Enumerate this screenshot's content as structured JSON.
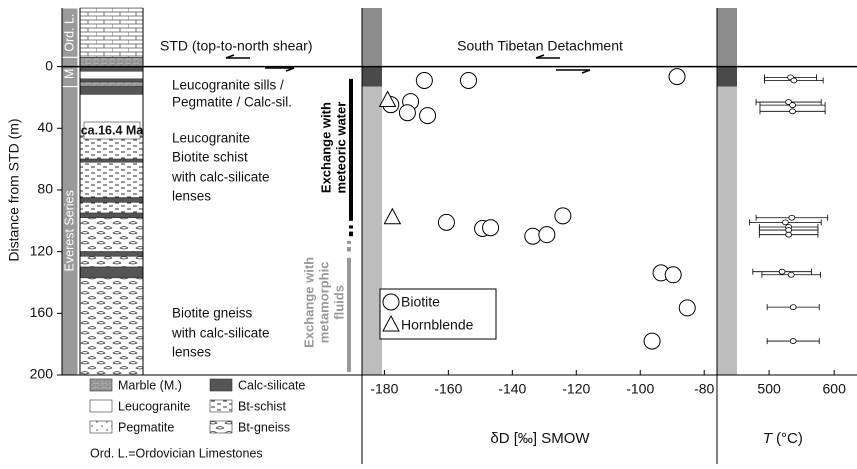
{
  "chart_data": [
    {
      "type": "scatter",
      "ylabel": "Distance from STD (m)",
      "ylim": [
        -38,
        200
      ],
      "yticks": [
        0,
        40,
        80,
        120,
        160,
        200
      ],
      "xlabel": "δD [‰] SMOW",
      "xlim": [
        -187,
        -76
      ],
      "xticks": [
        -180,
        -160,
        -140,
        -120,
        -100,
        -80
      ],
      "annotation": "South Tibetan Detachment",
      "legend_position": "lower left",
      "series": [
        {
          "name": "Biotite",
          "marker": "circle",
          "x": [
            -167.5,
            -153.7,
            -88.5,
            -178,
            -171.8,
            -172.8,
            -166.5,
            -160.6,
            -149.3,
            -146.8,
            -133.6,
            -129.2,
            -124.2,
            -93.5,
            -89.7,
            -85.3,
            -96.3
          ],
          "y": [
            9,
            9,
            6.5,
            24.7,
            22.7,
            29.9,
            31.8,
            101,
            105,
            104.5,
            110,
            109,
            96.8,
            133.8,
            135,
            156.5,
            178
          ]
        },
        {
          "name": "Hornblende",
          "marker": "triangle",
          "x": [
            -179,
            -177.5
          ],
          "y": [
            22,
            98
          ]
        }
      ]
    },
    {
      "type": "errorbar",
      "xlabel_symbol": "T",
      "xlabel_unit": "(°C)",
      "xlim": [
        420,
        635
      ],
      "xticks": [
        500,
        600
      ],
      "series": [
        {
          "depths": [
            7,
            9,
            23,
            25,
            29,
            98,
            101,
            104,
            106,
            109,
            133,
            135,
            156,
            178
          ],
          "values": [
            533,
            538,
            530,
            536,
            536,
            535,
            525,
            530,
            530,
            530,
            520,
            534,
            537,
            537
          ],
          "errors": [
            40,
            45,
            50,
            50,
            50,
            55,
            55,
            45,
            45,
            45,
            45,
            45,
            40,
            40
          ]
        }
      ]
    }
  ],
  "column": {
    "units": [
      {
        "label": "Ord. L.",
        "top": -38,
        "bottom": -6
      },
      {
        "label": "M.",
        "top": -6,
        "bottom": 13
      },
      {
        "label": "Everest Series",
        "top": 13,
        "bottom": 200
      }
    ],
    "layers": [
      {
        "lith": "Ord. L.",
        "top": -38,
        "bottom": -6
      },
      {
        "lith": "Marble (M.)",
        "top": -6,
        "bottom": 0
      },
      {
        "lith": "Calc-silicate",
        "top": 0,
        "bottom": 3
      },
      {
        "lith": "Leucogranite",
        "top": 3,
        "bottom": 8
      },
      {
        "lith": "Calc-silicate",
        "top": 8,
        "bottom": 10
      },
      {
        "lith": "Marble (M.)",
        "top": 10,
        "bottom": 13
      },
      {
        "lith": "Calc-silicate",
        "top": 13,
        "bottom": 18
      },
      {
        "lith": "Leucogranite",
        "top": 18,
        "bottom": 45
      },
      {
        "lith": "Bt-schist",
        "top": 45,
        "bottom": 60
      },
      {
        "lith": "Calc-silicate",
        "top": 60,
        "bottom": 62
      },
      {
        "lith": "Bt-schist",
        "top": 62,
        "bottom": 85
      },
      {
        "lith": "Calc-silicate",
        "top": 85,
        "bottom": 88
      },
      {
        "lith": "Bt-schist",
        "top": 88,
        "bottom": 95
      },
      {
        "lith": "Calc-silicate",
        "top": 95,
        "bottom": 98
      },
      {
        "lith": "Bt-gneiss",
        "top": 98,
        "bottom": 120
      },
      {
        "lith": "Calc-silicate",
        "top": 120,
        "bottom": 123
      },
      {
        "lith": "Bt-gneiss",
        "top": 123,
        "bottom": 130
      },
      {
        "lith": "Calc-silicate",
        "top": 130,
        "bottom": 137
      },
      {
        "lith": "Bt-gneiss",
        "top": 137,
        "bottom": 200
      }
    ],
    "std_label": "STD (top-to-north shear)",
    "labels": [
      "Leucogranite sills /",
      "Pegmatite / Calc-sil.",
      "Leucogranite",
      "Biotite schist",
      "with calc-silicate",
      "lenses",
      "Biotite gneiss",
      "with calc-silicate",
      "lenses"
    ],
    "age": "ca.16.4 Ma",
    "meteoric": {
      "lines": [
        "Exchange with",
        "meteoric water"
      ],
      "segments": [
        [
          8,
          100
        ],
        [
          103,
          105
        ],
        [
          107,
          110
        ]
      ]
    },
    "metamorphic": {
      "lines": [
        "Exchange with",
        "metamorphic",
        "fluids"
      ],
      "segments": [
        [
          113,
          115
        ],
        [
          117,
          120
        ],
        [
          124,
          198
        ]
      ]
    },
    "legend": [
      "Marble (M.)",
      "Calc-silicate",
      "Leucogranite",
      "Bt-schist",
      "Pegmatite",
      "Bt-gneiss"
    ],
    "legend_note": "Ord. L.=Ordovician Limestones"
  }
}
